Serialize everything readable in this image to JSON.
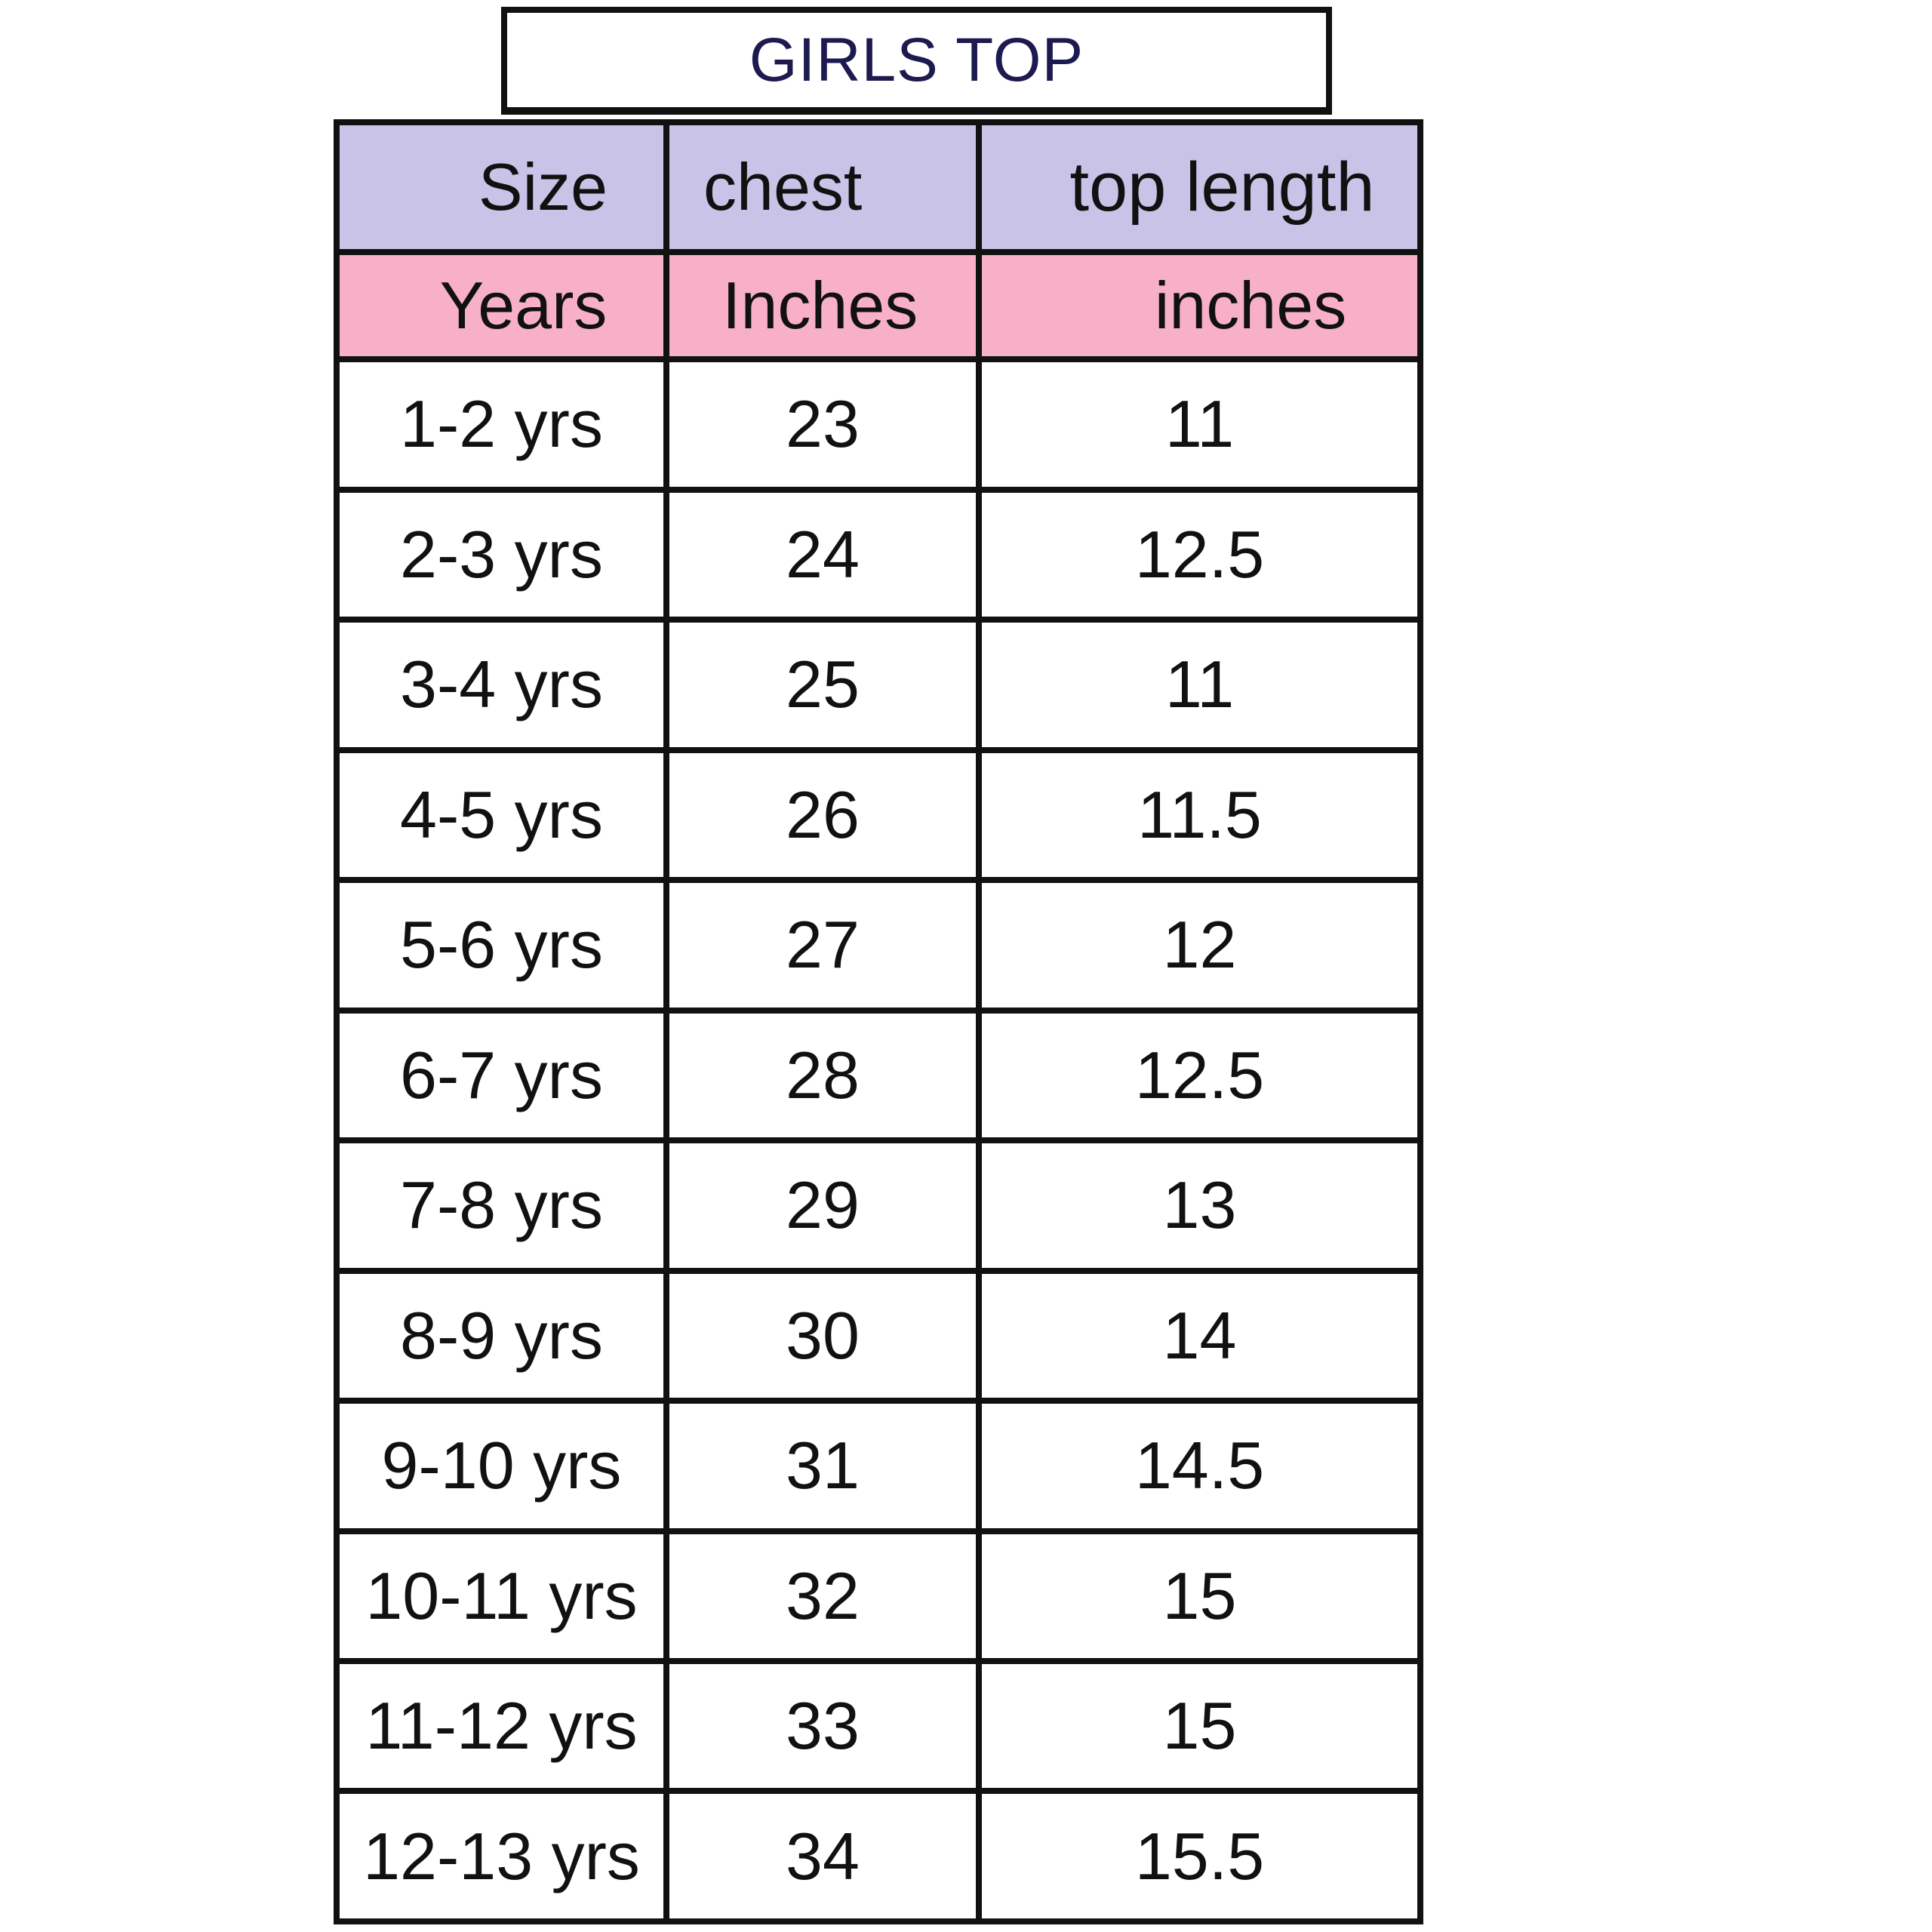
{
  "title": "GIRLS TOP",
  "header": {
    "size": "Size",
    "chest": "chest",
    "top_length": "top length"
  },
  "units": {
    "size": "Years",
    "chest": "Inches",
    "top_length": "inches"
  },
  "rows": [
    {
      "size": "1-2 yrs",
      "chest": "23",
      "top_length": "11"
    },
    {
      "size": "2-3 yrs",
      "chest": "24",
      "top_length": "12.5"
    },
    {
      "size": "3-4 yrs",
      "chest": "25",
      "top_length": "11"
    },
    {
      "size": "4-5 yrs",
      "chest": "26",
      "top_length": "11.5"
    },
    {
      "size": "5-6 yrs",
      "chest": "27",
      "top_length": "12"
    },
    {
      "size": "6-7 yrs",
      "chest": "28",
      "top_length": "12.5"
    },
    {
      "size": "7-8 yrs",
      "chest": "29",
      "top_length": "13"
    },
    {
      "size": "8-9 yrs",
      "chest": "30",
      "top_length": "14"
    },
    {
      "size": "9-10 yrs",
      "chest": "31",
      "top_length": "14.5"
    },
    {
      "size": "10-11 yrs",
      "chest": "32",
      "top_length": "15"
    },
    {
      "size": "11-12 yrs",
      "chest": "33",
      "top_length": "15"
    },
    {
      "size": "12-13 yrs",
      "chest": "34",
      "top_length": "15.5"
    }
  ],
  "colors": {
    "header_bg": "#c9c3e8",
    "unit_bg": "#f8afc8",
    "title_text": "#1c1a4f",
    "border": "#111111"
  }
}
